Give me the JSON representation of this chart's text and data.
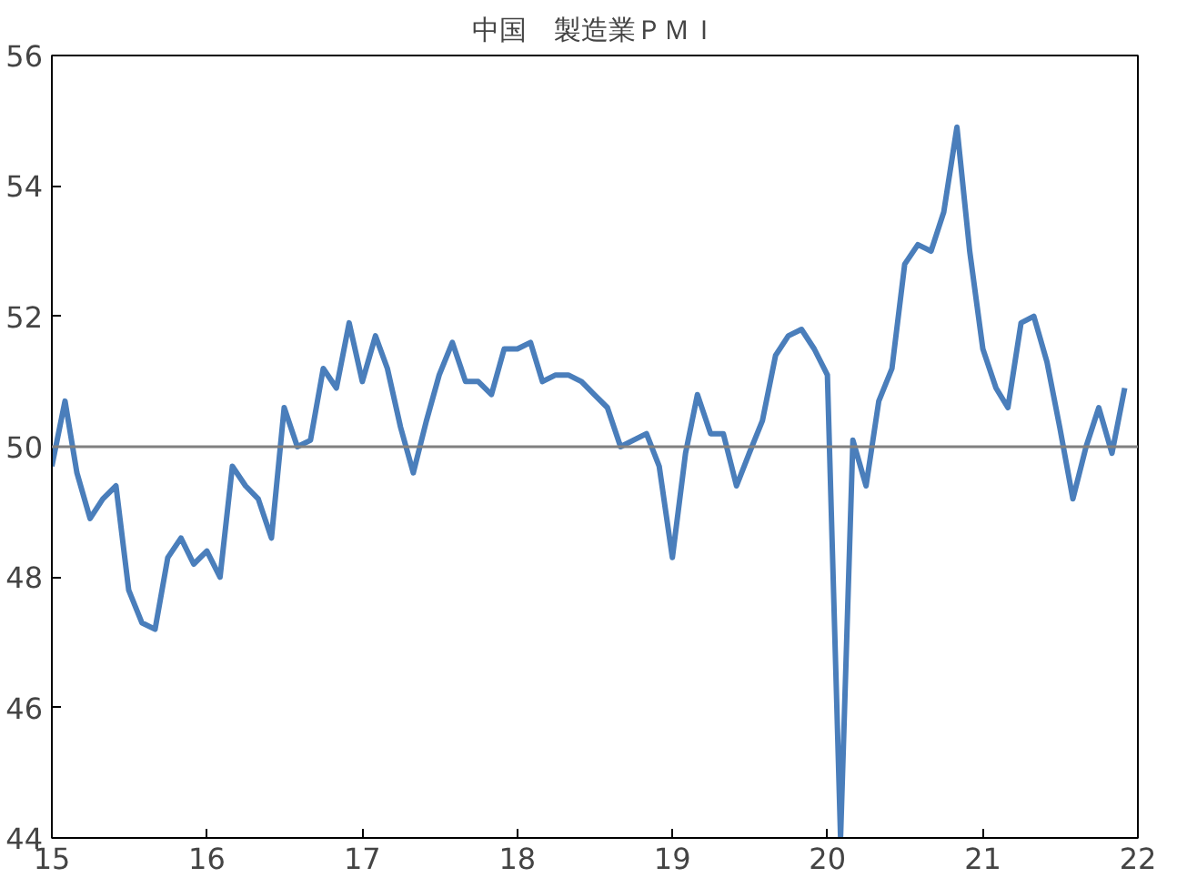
{
  "chart_data": {
    "type": "line",
    "title": "中国　製造業ＰＭＩ",
    "x": [
      "2015-01",
      "2015-02",
      "2015-03",
      "2015-04",
      "2015-05",
      "2015-06",
      "2015-07",
      "2015-08",
      "2015-09",
      "2015-10",
      "2015-11",
      "2015-12",
      "2016-01",
      "2016-02",
      "2016-03",
      "2016-04",
      "2016-05",
      "2016-06",
      "2016-07",
      "2016-08",
      "2016-09",
      "2016-10",
      "2016-11",
      "2016-12",
      "2017-01",
      "2017-02",
      "2017-03",
      "2017-04",
      "2017-05",
      "2017-06",
      "2017-07",
      "2017-08",
      "2017-09",
      "2017-10",
      "2017-11",
      "2017-12",
      "2018-01",
      "2018-02",
      "2018-03",
      "2018-04",
      "2018-05",
      "2018-06",
      "2018-07",
      "2018-08",
      "2018-09",
      "2018-10",
      "2018-11",
      "2018-12",
      "2019-01",
      "2019-02",
      "2019-03",
      "2019-04",
      "2019-05",
      "2019-06",
      "2019-07",
      "2019-08",
      "2019-09",
      "2019-10",
      "2019-11",
      "2019-12",
      "2020-01",
      "2020-02",
      "2020-03",
      "2020-04",
      "2020-05",
      "2020-06",
      "2020-07",
      "2020-08",
      "2020-09",
      "2020-10",
      "2020-11",
      "2020-12",
      "2021-01",
      "2021-02",
      "2021-03",
      "2021-04",
      "2021-05",
      "2021-06",
      "2021-07",
      "2021-08",
      "2021-09",
      "2021-10",
      "2021-11",
      "2021-12"
    ],
    "series": [
      {
        "color": "#4a7ebb",
        "values": [
          49.7,
          50.7,
          49.6,
          48.9,
          49.2,
          49.4,
          47.8,
          47.3,
          47.2,
          48.3,
          48.6,
          48.2,
          48.4,
          48.0,
          49.7,
          49.4,
          49.2,
          48.6,
          50.6,
          50.0,
          50.1,
          51.2,
          50.9,
          51.9,
          51.0,
          51.7,
          51.2,
          50.3,
          49.6,
          50.4,
          51.1,
          51.6,
          51.0,
          51.0,
          50.8,
          51.5,
          51.5,
          51.6,
          51.0,
          51.1,
          51.1,
          51.0,
          50.8,
          50.6,
          50.0,
          50.1,
          50.2,
          49.7,
          48.3,
          49.9,
          50.8,
          50.2,
          50.2,
          49.4,
          49.9,
          50.4,
          51.4,
          51.7,
          51.8,
          51.5,
          51.1,
          44,
          50.1,
          49.4,
          50.7,
          51.2,
          52.8,
          53.1,
          53.0,
          53.6,
          54.9,
          53.0,
          51.5,
          50.9,
          50.6,
          51.9,
          52.0,
          51.3,
          50.3,
          49.2,
          50.0,
          50.6,
          49.9,
          50.9
        ]
      }
    ],
    "xlim": [
      "2015-01",
      "2022-01"
    ],
    "xticks": [
      {
        "value": "2015-01",
        "label": "15"
      },
      {
        "value": "2016-01",
        "label": "16"
      },
      {
        "value": "2017-01",
        "label": "17"
      },
      {
        "value": "2018-01",
        "label": "18"
      },
      {
        "value": "2019-01",
        "label": "19"
      },
      {
        "value": "2020-01",
        "label": "20"
      },
      {
        "value": "2021-01",
        "label": "21"
      },
      {
        "value": "2022-01",
        "label": "22"
      }
    ],
    "ylim": [
      44,
      56
    ],
    "yticks": [
      44,
      46,
      48,
      50,
      52,
      54,
      56
    ],
    "ref_lines": [
      {
        "axis": "y",
        "value": 50,
        "color": "#808080"
      }
    ],
    "grid": false,
    "line_style": "solid",
    "marker": "none"
  }
}
